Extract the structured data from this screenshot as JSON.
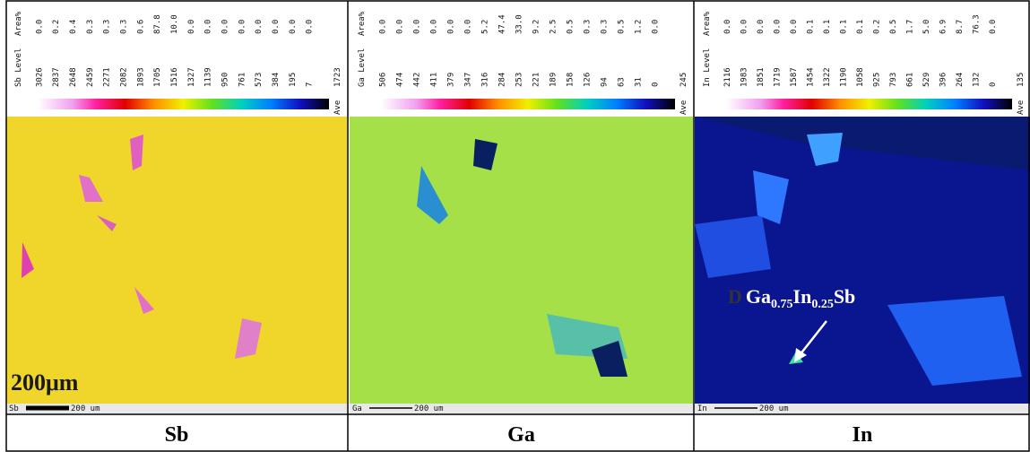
{
  "panels": [
    {
      "level_header": "Sb Level",
      "area_header": "Area%",
      "levels": [
        "3026",
        "2837",
        "2648",
        "2459",
        "2271",
        "2082",
        "1893",
        "1705",
        "1516",
        "1327",
        "1139",
        "950",
        "761",
        "573",
        "384",
        "195",
        "7"
      ],
      "areas": [
        "0.0",
        "0.2",
        "0.4",
        "0.3",
        "0.3",
        "0.3",
        "0.6",
        "87.8",
        "10.0",
        "0.0",
        "0.0",
        "0.0",
        "0.0",
        "0.0",
        "0.0",
        "0.0",
        "0.0"
      ],
      "ave_label": "Ave",
      "ave": "1723",
      "scale_element": "Sb",
      "scale_text": "200 um",
      "caption": "Sb"
    },
    {
      "level_header": "Ga Level",
      "area_header": "Area%",
      "levels": [
        "506",
        "474",
        "442",
        "411",
        "379",
        "347",
        "316",
        "284",
        "253",
        "221",
        "189",
        "158",
        "126",
        "94",
        "63",
        "31",
        "0"
      ],
      "areas": [
        "0.0",
        "0.0",
        "0.0",
        "0.0",
        "0.0",
        "0.0",
        "5.2",
        "47.4",
        "33.0",
        "9.2",
        "2.5",
        "0.5",
        "0.3",
        "0.3",
        "0.5",
        "1.2",
        "0.0"
      ],
      "ave_label": "Ave",
      "ave": "245",
      "scale_element": "Ga",
      "scale_text": "200 um",
      "caption": "Ga"
    },
    {
      "level_header": "In Level",
      "area_header": "Area%",
      "levels": [
        "2116",
        "1983",
        "1851",
        "1719",
        "1587",
        "1454",
        "1322",
        "1190",
        "1058",
        "925",
        "793",
        "661",
        "529",
        "396",
        "264",
        "132",
        "0"
      ],
      "areas": [
        "0.0",
        "0.0",
        "0.0",
        "0.0",
        "0.0",
        "0.1",
        "0.1",
        "0.1",
        "0.1",
        "0.2",
        "0.5",
        "1.7",
        "5.0",
        "6.9",
        "8.7",
        "76.3",
        "0.0"
      ],
      "ave_label": "Ave",
      "ave": "135",
      "scale_element": "In",
      "scale_text": "200 um",
      "caption": "In"
    }
  ],
  "annotations": {
    "scale_bar_label": "200μm",
    "point_label": "D",
    "phase": {
      "base1": "Ga",
      "sub1": "0.75",
      "base2": "In",
      "sub2": "0.25",
      "base3": "Sb"
    }
  }
}
